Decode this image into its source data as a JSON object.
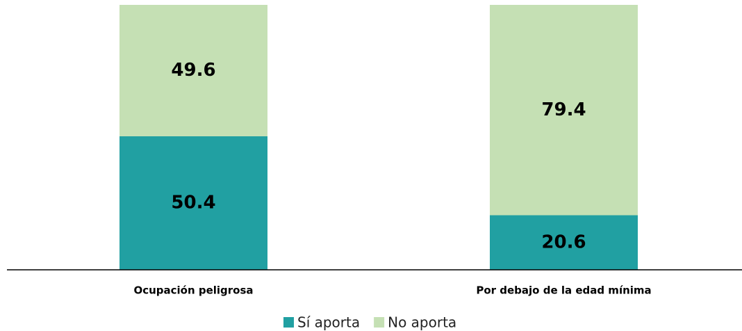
{
  "chart_data": {
    "type": "stacked_bar",
    "categories": [
      "Ocupación peligrosa",
      "Por debajo de la edad mínima"
    ],
    "series": [
      {
        "name": "Sí aporta",
        "color": "#21a0a2",
        "values": [
          50.4,
          20.6
        ]
      },
      {
        "name": "No aporta",
        "color": "#c5e0b4",
        "values": [
          49.6,
          79.4
        ]
      }
    ],
    "ylim": [
      0,
      100
    ],
    "legend": "bottom"
  }
}
